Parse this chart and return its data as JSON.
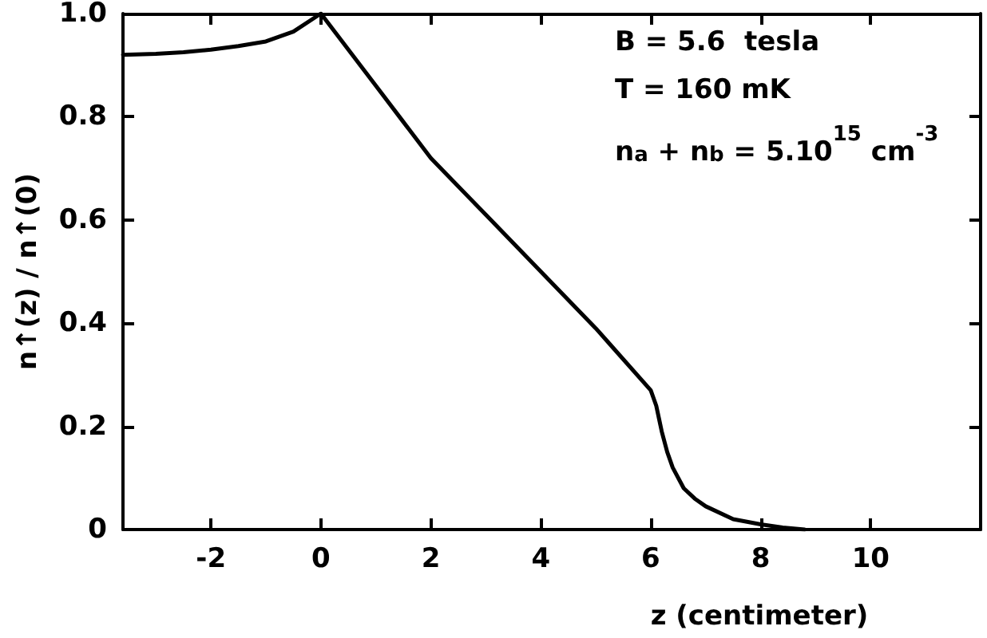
{
  "chart_data": {
    "type": "line",
    "xlabel": "z (centimeter)",
    "ylabel": "n↑(z) / n↑(0)",
    "annotations": [
      "B = 5.6  tesla",
      "T = 160 mK",
      "n$_{a}$ + n$_{b}$ = 5.10$^{15}$ cm$^{-3}$"
    ],
    "x": [
      -3.6,
      -3,
      -2.5,
      -2,
      -1.5,
      -1,
      -0.5,
      0,
      0.5,
      1,
      1.5,
      2,
      3,
      4,
      5,
      6,
      6.1,
      6.15,
      6.2,
      6.3,
      6.4,
      6.6,
      6.8,
      7,
      7.5,
      8,
      8.4,
      8.8
    ],
    "series": [
      {
        "color": "#000000",
        "values": [
          0.92,
          0.922,
          0.925,
          0.93,
          0.937,
          0.946,
          0.965,
          1.0,
          0.93,
          0.86,
          0.79,
          0.72,
          0.61,
          0.5,
          0.39,
          0.27,
          0.24,
          0.215,
          0.19,
          0.15,
          0.12,
          0.08,
          0.06,
          0.045,
          0.02,
          0.01,
          0.004,
          0
        ]
      }
    ],
    "xlim": [
      -3.6,
      12
    ],
    "xticks": [
      -2,
      0,
      2,
      4,
      6,
      8,
      10
    ],
    "ylim": [
      0,
      1.0
    ],
    "yticks": [
      0,
      0.2,
      0.4,
      0.6,
      0.8,
      {
        "value": 1.0,
        "label": "1.0"
      }
    ],
    "marker": "none",
    "line_style": "solid"
  }
}
